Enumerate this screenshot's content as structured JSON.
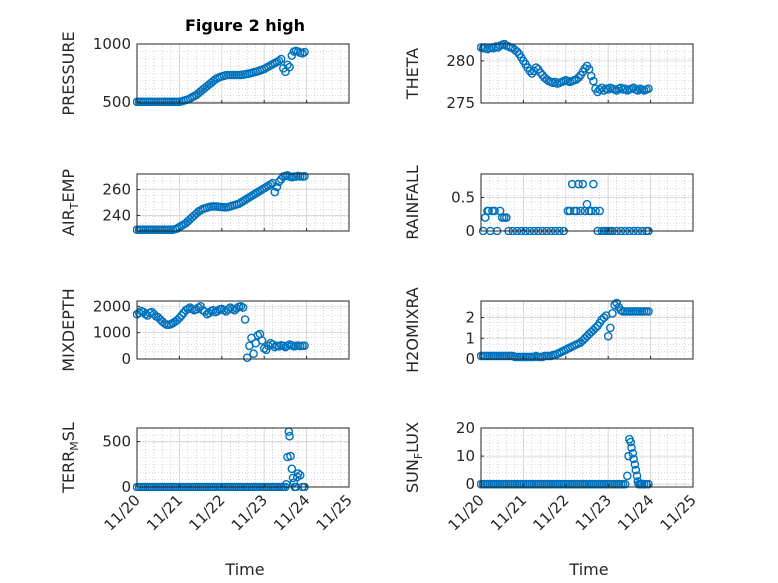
{
  "figure": {
    "title": "Figure 2 high",
    "xlabel": "Time",
    "marker_color": "#0072BD",
    "x_ticks": [
      "11/20",
      "11/21",
      "11/22",
      "11/23",
      "11/24",
      "11/25"
    ]
  },
  "chart_data": [
    {
      "type": "scatter",
      "ylabel": "PRESSURE",
      "xlim": [
        0,
        5
      ],
      "ylim": [
        490,
        1000
      ],
      "yticks": [
        500,
        1000
      ],
      "ytick_labels": [
        "500",
        "1000"
      ],
      "grid": true,
      "x": [
        0.0,
        0.05,
        0.1,
        0.15,
        0.2,
        0.25,
        0.3,
        0.35,
        0.4,
        0.45,
        0.5,
        0.55,
        0.6,
        0.65,
        0.7,
        0.75,
        0.8,
        0.85,
        0.9,
        0.95,
        1.0,
        1.05,
        1.1,
        1.15,
        1.2,
        1.25,
        1.3,
        1.35,
        1.4,
        1.45,
        1.5,
        1.55,
        1.6,
        1.65,
        1.7,
        1.75,
        1.8,
        1.85,
        1.9,
        1.95,
        2.0,
        2.05,
        2.1,
        2.15,
        2.2,
        2.25,
        2.3,
        2.35,
        2.4,
        2.45,
        2.5,
        2.55,
        2.6,
        2.65,
        2.7,
        2.75,
        2.8,
        2.85,
        2.9,
        2.95,
        3.0,
        3.05,
        3.1,
        3.15,
        3.2,
        3.25,
        3.3,
        3.35,
        3.4,
        3.45,
        3.5,
        3.55,
        3.6,
        3.65,
        3.7,
        3.75,
        3.8,
        3.85,
        3.9,
        3.95
      ],
      "y": [
        500,
        500,
        500,
        500,
        500,
        500,
        500,
        500,
        500,
        500,
        500,
        500,
        500,
        500,
        500,
        500,
        500,
        500,
        500,
        500,
        500,
        505,
        510,
        515,
        520,
        530,
        540,
        550,
        560,
        575,
        590,
        605,
        620,
        635,
        650,
        665,
        680,
        695,
        705,
        715,
        720,
        725,
        730,
        732,
        732,
        732,
        732,
        732,
        732,
        733,
        735,
        738,
        742,
        746,
        750,
        755,
        760,
        765,
        772,
        778,
        785,
        795,
        805,
        815,
        825,
        835,
        845,
        855,
        870,
        790,
        760,
        820,
        800,
        900,
        935,
        940,
        935,
        925,
        920,
        930
      ]
    },
    {
      "type": "scatter",
      "ylabel": "THETA",
      "xlim": [
        0,
        5
      ],
      "ylim": [
        275,
        282
      ],
      "yticks": [
        275,
        280
      ],
      "ytick_labels": [
        "275",
        "280"
      ],
      "grid": true,
      "x": [
        0.0,
        0.05,
        0.1,
        0.15,
        0.2,
        0.25,
        0.3,
        0.35,
        0.4,
        0.45,
        0.5,
        0.55,
        0.6,
        0.65,
        0.7,
        0.75,
        0.8,
        0.85,
        0.9,
        0.95,
        1.0,
        1.05,
        1.1,
        1.15,
        1.2,
        1.25,
        1.3,
        1.35,
        1.4,
        1.45,
        1.5,
        1.55,
        1.6,
        1.65,
        1.7,
        1.75,
        1.8,
        1.85,
        1.9,
        1.95,
        2.0,
        2.05,
        2.1,
        2.15,
        2.2,
        2.25,
        2.3,
        2.35,
        2.4,
        2.45,
        2.5,
        2.55,
        2.6,
        2.65,
        2.7,
        2.75,
        2.8,
        2.85,
        2.9,
        2.95,
        3.0,
        3.05,
        3.1,
        3.15,
        3.2,
        3.25,
        3.3,
        3.35,
        3.4,
        3.45,
        3.5,
        3.55,
        3.6,
        3.65,
        3.7,
        3.75,
        3.8,
        3.85,
        3.9,
        3.95
      ],
      "y": [
        281.6,
        281.5,
        281.6,
        281.4,
        281.5,
        281.6,
        281.5,
        281.7,
        281.6,
        281.8,
        281.9,
        282.0,
        281.8,
        281.7,
        281.6,
        281.5,
        281.3,
        281.1,
        280.8,
        280.4,
        280.0,
        279.6,
        279.2,
        278.8,
        278.5,
        278.8,
        279.2,
        279.0,
        278.6,
        278.3,
        278.0,
        277.8,
        277.6,
        277.5,
        277.4,
        277.5,
        277.3,
        277.4,
        277.5,
        277.6,
        277.7,
        277.6,
        277.5,
        277.6,
        277.7,
        277.8,
        278.0,
        278.3,
        278.7,
        279.1,
        279.4,
        279.0,
        278.2,
        277.6,
        276.7,
        276.3,
        276.6,
        276.8,
        276.5,
        276.7,
        276.6,
        276.8,
        276.7,
        276.6,
        276.5,
        276.7,
        276.8,
        276.6,
        276.7,
        276.5,
        276.6,
        276.7,
        276.8,
        276.6,
        276.5,
        276.7,
        276.6,
        276.5,
        276.6,
        276.7
      ]
    },
    {
      "type": "scatter",
      "ylabel": "AIR_TEMP",
      "xlim": [
        0,
        5
      ],
      "ylim": [
        228,
        272
      ],
      "yticks": [
        240,
        260
      ],
      "ytick_labels": [
        "240",
        "260"
      ],
      "grid": true,
      "x": [
        0.0,
        0.05,
        0.1,
        0.15,
        0.2,
        0.25,
        0.3,
        0.35,
        0.4,
        0.45,
        0.5,
        0.55,
        0.6,
        0.65,
        0.7,
        0.75,
        0.8,
        0.85,
        0.9,
        0.95,
        1.0,
        1.05,
        1.1,
        1.15,
        1.2,
        1.25,
        1.3,
        1.35,
        1.4,
        1.45,
        1.5,
        1.55,
        1.6,
        1.65,
        1.7,
        1.75,
        1.8,
        1.85,
        1.9,
        1.95,
        2.0,
        2.05,
        2.1,
        2.15,
        2.2,
        2.25,
        2.3,
        2.35,
        2.4,
        2.45,
        2.5,
        2.55,
        2.6,
        2.65,
        2.7,
        2.75,
        2.8,
        2.85,
        2.9,
        2.95,
        3.0,
        3.05,
        3.1,
        3.15,
        3.2,
        3.25,
        3.3,
        3.35,
        3.4,
        3.45,
        3.5,
        3.55,
        3.6,
        3.65,
        3.7,
        3.75,
        3.8,
        3.85,
        3.9,
        3.95
      ],
      "y": [
        229,
        229,
        229,
        229,
        229,
        229,
        229,
        229,
        229,
        229,
        229,
        229,
        229,
        229,
        229,
        229,
        229,
        229,
        229.5,
        230,
        231,
        232,
        233,
        234,
        235.5,
        237,
        238.5,
        240,
        241.5,
        243,
        244,
        245,
        245.5,
        246,
        246.5,
        246.8,
        247,
        247,
        246.8,
        246.6,
        246.5,
        246.3,
        246.3,
        246.5,
        247,
        247.5,
        248,
        248.5,
        249,
        250,
        251,
        252,
        253,
        254,
        255,
        256,
        257,
        258,
        259,
        260,
        261,
        262,
        263,
        264,
        265,
        258,
        262,
        266,
        268,
        270,
        270.5,
        271,
        270,
        269.5,
        270,
        270,
        270.5,
        270.2,
        270,
        270.3
      ]
    },
    {
      "type": "scatter",
      "ylabel": "RAINFALL",
      "xlim": [
        0,
        5
      ],
      "ylim": [
        0,
        0.85
      ],
      "yticks": [
        0,
        0.5
      ],
      "ytick_labels": [
        "0",
        "0.5"
      ],
      "grid": true,
      "x": [
        0.05,
        0.1,
        0.15,
        0.18,
        0.22,
        0.27,
        0.32,
        0.38,
        0.45,
        0.5,
        0.55,
        0.6,
        0.65,
        0.75,
        0.85,
        0.95,
        1.05,
        1.15,
        1.25,
        1.35,
        1.45,
        1.55,
        1.65,
        1.75,
        1.85,
        1.95,
        2.05,
        2.1,
        2.15,
        2.2,
        2.25,
        2.3,
        2.35,
        2.4,
        2.45,
        2.5,
        2.55,
        2.6,
        2.65,
        2.7,
        2.75,
        2.8,
        2.85,
        2.9,
        2.95,
        3.0,
        3.05,
        3.1,
        3.2,
        3.3,
        3.4,
        3.5,
        3.6,
        3.7,
        3.8,
        3.9,
        3.95
      ],
      "y": [
        0,
        0.2,
        0.3,
        0.3,
        0,
        0.3,
        0.3,
        0,
        0.3,
        0.2,
        0.2,
        0.2,
        0,
        0,
        0,
        0,
        0,
        0,
        0,
        0,
        0,
        0,
        0,
        0,
        0,
        0,
        0.3,
        0.3,
        0.7,
        0.3,
        0.3,
        0.7,
        0.3,
        0.7,
        0.3,
        0.4,
        0.3,
        0.3,
        0.7,
        0.3,
        0,
        0.3,
        0,
        0,
        0,
        0,
        0,
        0,
        0,
        0,
        0,
        0,
        0,
        0,
        0,
        0,
        0
      ]
    },
    {
      "type": "scatter",
      "ylabel": "MIXDEPTH",
      "xlim": [
        0,
        5
      ],
      "ylim": [
        0,
        2200
      ],
      "yticks": [
        0,
        1000,
        2000
      ],
      "ytick_labels": [
        "0",
        "1000",
        "2000"
      ],
      "grid": true,
      "x": [
        0.0,
        0.05,
        0.1,
        0.15,
        0.2,
        0.25,
        0.3,
        0.35,
        0.4,
        0.45,
        0.5,
        0.55,
        0.6,
        0.65,
        0.7,
        0.75,
        0.8,
        0.85,
        0.9,
        0.95,
        1.0,
        1.05,
        1.1,
        1.15,
        1.2,
        1.25,
        1.3,
        1.35,
        1.4,
        1.45,
        1.5,
        1.55,
        1.6,
        1.65,
        1.7,
        1.75,
        1.8,
        1.85,
        1.9,
        1.95,
        2.0,
        2.05,
        2.1,
        2.15,
        2.2,
        2.25,
        2.3,
        2.35,
        2.4,
        2.45,
        2.5,
        2.55,
        2.6,
        2.65,
        2.7,
        2.75,
        2.8,
        2.85,
        2.9,
        2.95,
        3.0,
        3.05,
        3.1,
        3.15,
        3.2,
        3.25,
        3.3,
        3.35,
        3.4,
        3.45,
        3.5,
        3.55,
        3.6,
        3.65,
        3.7,
        3.75,
        3.8,
        3.85,
        3.9,
        3.95
      ],
      "y": [
        1700,
        1750,
        1820,
        1780,
        1700,
        1650,
        1750,
        1780,
        1700,
        1620,
        1580,
        1500,
        1420,
        1350,
        1300,
        1300,
        1320,
        1360,
        1420,
        1480,
        1560,
        1650,
        1750,
        1850,
        1900,
        1950,
        1900,
        1850,
        1880,
        1950,
        2000,
        1850,
        1800,
        1700,
        1750,
        1820,
        1850,
        1780,
        1820,
        1880,
        1900,
        1850,
        1800,
        1880,
        1950,
        1900,
        1850,
        1920,
        1980,
        2000,
        1950,
        1500,
        50,
        500,
        800,
        200,
        600,
        900,
        950,
        700,
        400,
        350,
        500,
        600,
        550,
        450,
        500,
        480,
        520,
        500,
        450,
        500,
        550,
        520,
        480,
        500,
        510,
        490,
        500,
        505
      ]
    },
    {
      "type": "scatter",
      "ylabel": "H2OMIXRA",
      "xlim": [
        0,
        5
      ],
      "ylim": [
        0,
        2.8
      ],
      "yticks": [
        0,
        1,
        2
      ],
      "ytick_labels": [
        "0",
        "1",
        "2"
      ],
      "grid": true,
      "x": [
        0.0,
        0.05,
        0.1,
        0.15,
        0.2,
        0.25,
        0.3,
        0.35,
        0.4,
        0.45,
        0.5,
        0.55,
        0.6,
        0.65,
        0.7,
        0.75,
        0.8,
        0.85,
        0.9,
        0.95,
        1.0,
        1.05,
        1.1,
        1.15,
        1.2,
        1.25,
        1.3,
        1.35,
        1.4,
        1.45,
        1.5,
        1.55,
        1.6,
        1.65,
        1.7,
        1.75,
        1.8,
        1.85,
        1.9,
        1.95,
        2.0,
        2.05,
        2.1,
        2.15,
        2.2,
        2.25,
        2.3,
        2.35,
        2.4,
        2.45,
        2.5,
        2.55,
        2.6,
        2.65,
        2.7,
        2.75,
        2.8,
        2.85,
        2.9,
        2.95,
        3.0,
        3.05,
        3.1,
        3.15,
        3.2,
        3.25,
        3.3,
        3.35,
        3.4,
        3.45,
        3.5,
        3.55,
        3.6,
        3.65,
        3.7,
        3.75,
        3.8,
        3.85,
        3.9,
        3.95
      ],
      "y": [
        0.15,
        0.15,
        0.15,
        0.15,
        0.15,
        0.15,
        0.15,
        0.15,
        0.15,
        0.15,
        0.15,
        0.15,
        0.15,
        0.15,
        0.15,
        0.15,
        0.1,
        0.1,
        0.1,
        0.1,
        0.1,
        0.1,
        0.1,
        0.1,
        0.1,
        0.1,
        0.15,
        0.1,
        0.1,
        0.1,
        0.15,
        0.15,
        0.15,
        0.15,
        0.2,
        0.2,
        0.25,
        0.3,
        0.35,
        0.4,
        0.45,
        0.5,
        0.55,
        0.6,
        0.65,
        0.7,
        0.75,
        0.8,
        0.9,
        1.0,
        1.1,
        1.2,
        1.3,
        1.4,
        1.5,
        1.6,
        1.75,
        1.9,
        2.0,
        2.1,
        1.1,
        1.5,
        2.2,
        2.6,
        2.7,
        2.5,
        2.35,
        2.3,
        2.3,
        2.3,
        2.3,
        2.3,
        2.3,
        2.3,
        2.3,
        2.3,
        2.3,
        2.3,
        2.3,
        2.3
      ]
    },
    {
      "type": "scatter",
      "ylabel": "TERR_MSL",
      "xlim": [
        0,
        5
      ],
      "ylim": [
        0,
        650
      ],
      "yticks": [
        0,
        500
      ],
      "ytick_labels": [
        "0",
        "500"
      ],
      "grid": true,
      "x": [
        0.0,
        0.05,
        0.1,
        0.15,
        0.2,
        0.25,
        0.3,
        0.35,
        0.4,
        0.45,
        0.5,
        0.55,
        0.6,
        0.65,
        0.7,
        0.75,
        0.8,
        0.85,
        0.9,
        0.95,
        1.0,
        1.05,
        1.1,
        1.15,
        1.2,
        1.25,
        1.3,
        1.35,
        1.4,
        1.45,
        1.5,
        1.55,
        1.6,
        1.65,
        1.7,
        1.75,
        1.8,
        1.85,
        1.9,
        1.95,
        2.0,
        2.05,
        2.1,
        2.15,
        2.2,
        2.25,
        2.3,
        2.35,
        2.4,
        2.45,
        2.5,
        2.55,
        2.6,
        2.65,
        2.7,
        2.75,
        2.8,
        2.85,
        2.9,
        2.95,
        3.0,
        3.05,
        3.1,
        3.15,
        3.2,
        3.25,
        3.3,
        3.35,
        3.4,
        3.45,
        3.5,
        3.52,
        3.55,
        3.58,
        3.6,
        3.62,
        3.65,
        3.68,
        3.7,
        3.72,
        3.75,
        3.78,
        3.8,
        3.85,
        3.9,
        3.95
      ],
      "y": [
        0,
        0,
        0,
        0,
        0,
        0,
        0,
        0,
        0,
        0,
        0,
        0,
        0,
        0,
        0,
        0,
        0,
        0,
        0,
        0,
        0,
        0,
        0,
        0,
        0,
        0,
        0,
        0,
        0,
        0,
        0,
        0,
        0,
        0,
        0,
        0,
        0,
        0,
        0,
        0,
        0,
        0,
        0,
        0,
        0,
        0,
        0,
        0,
        0,
        0,
        0,
        0,
        0,
        0,
        0,
        0,
        0,
        0,
        0,
        0,
        0,
        0,
        0,
        0,
        0,
        0,
        0,
        0,
        0,
        0,
        0,
        30,
        330,
        610,
        560,
        340,
        200,
        100,
        50,
        0,
        0,
        110,
        150,
        130,
        0,
        0
      ]
    },
    {
      "type": "scatter",
      "ylabel": "SUN_FLUX",
      "xlim": [
        0,
        5
      ],
      "ylim": [
        -1,
        20
      ],
      "yticks": [
        0,
        10,
        20
      ],
      "ytick_labels": [
        "0",
        "10",
        "20"
      ],
      "grid": true,
      "x": [
        0.0,
        0.05,
        0.1,
        0.15,
        0.2,
        0.25,
        0.3,
        0.35,
        0.4,
        0.45,
        0.5,
        0.55,
        0.6,
        0.65,
        0.7,
        0.75,
        0.8,
        0.85,
        0.9,
        0.95,
        1.0,
        1.05,
        1.1,
        1.15,
        1.2,
        1.25,
        1.3,
        1.35,
        1.4,
        1.45,
        1.5,
        1.55,
        1.6,
        1.65,
        1.7,
        1.75,
        1.8,
        1.85,
        1.9,
        1.95,
        2.0,
        2.05,
        2.1,
        2.15,
        2.2,
        2.25,
        2.3,
        2.35,
        2.4,
        2.45,
        2.5,
        2.55,
        2.6,
        2.65,
        2.7,
        2.75,
        2.8,
        2.85,
        2.9,
        2.95,
        3.0,
        3.05,
        3.1,
        3.15,
        3.2,
        3.25,
        3.3,
        3.35,
        3.4,
        3.45,
        3.48,
        3.5,
        3.53,
        3.55,
        3.58,
        3.6,
        3.63,
        3.65,
        3.68,
        3.7,
        3.72,
        3.75,
        3.78,
        3.8,
        3.85,
        3.9,
        3.95
      ],
      "y": [
        0,
        0,
        0,
        0,
        0,
        0,
        0,
        0,
        0,
        0,
        0,
        0,
        0,
        0,
        0,
        0,
        0,
        0,
        0,
        0,
        0,
        0,
        0,
        0,
        0,
        0,
        0,
        0,
        0,
        0,
        0,
        0,
        0,
        0,
        0,
        0,
        0,
        0,
        0,
        0,
        0,
        0,
        0,
        0,
        0,
        0,
        0,
        0,
        0,
        0,
        0,
        0,
        0,
        0,
        0,
        0,
        0,
        0,
        0,
        0,
        0,
        0,
        0,
        0,
        0,
        0,
        0,
        0,
        0,
        3,
        10,
        16,
        15,
        13,
        11,
        9,
        7,
        5,
        3,
        1,
        0,
        0,
        0,
        0,
        0,
        0,
        0
      ]
    }
  ]
}
